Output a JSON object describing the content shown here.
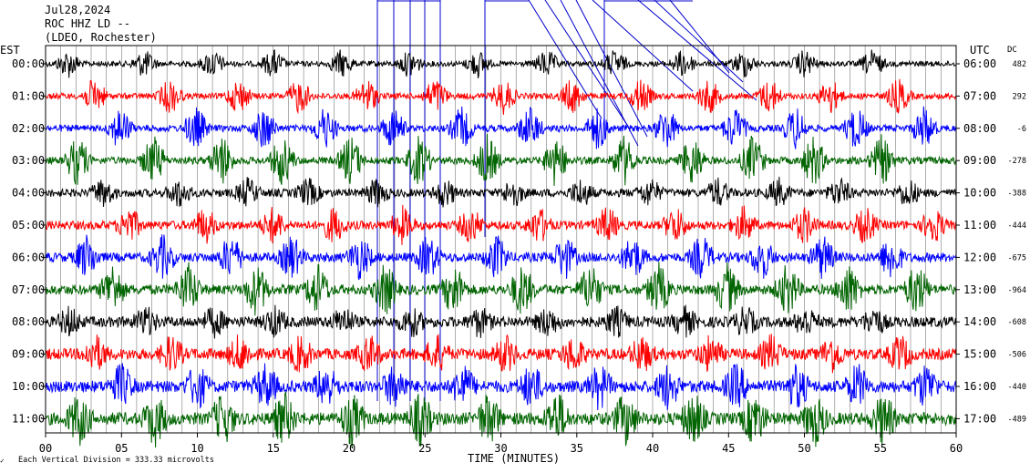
{
  "header": {
    "date": "Jul28,2024",
    "station": "ROC HHZ LD --",
    "network": "(LDEO, Rochester)"
  },
  "chart_data": {
    "type": "line",
    "title": "",
    "xlabel": "TIME (MINUTES)",
    "left_axis_label": "EST",
    "right_axis_label": "UTC",
    "dc_label": "DC",
    "xlim": [
      0,
      60
    ],
    "x_ticks": [
      "00",
      "05",
      "10",
      "15",
      "20",
      "25",
      "30",
      "35",
      "40",
      "45",
      "50",
      "55",
      "60"
    ],
    "scale_note": "Each Vertical Division =  333.33 microvolts",
    "grid": true,
    "rows": [
      {
        "est": "00:00",
        "utc": "06:00",
        "dc": "482",
        "color": "#000000"
      },
      {
        "est": "01:00",
        "utc": "07:00",
        "dc": "292",
        "color": "#ff0000"
      },
      {
        "est": "02:00",
        "utc": "08:00",
        "dc": "-6",
        "color": "#0000ff"
      },
      {
        "est": "03:00",
        "utc": "09:00",
        "dc": "-278",
        "color": "#006400"
      },
      {
        "est": "04:00",
        "utc": "10:00",
        "dc": "-388",
        "color": "#000000"
      },
      {
        "est": "05:00",
        "utc": "11:00",
        "dc": "-444",
        "color": "#ff0000"
      },
      {
        "est": "06:00",
        "utc": "12:00",
        "dc": "-675",
        "color": "#0000ff"
      },
      {
        "est": "07:00",
        "utc": "13:00",
        "dc": "-964",
        "color": "#006400"
      },
      {
        "est": "08:00",
        "utc": "14:00",
        "dc": "-608",
        "color": "#000000"
      },
      {
        "est": "09:00",
        "utc": "15:00",
        "dc": "-506",
        "color": "#ff0000"
      },
      {
        "est": "10:00",
        "utc": "16:00",
        "dc": "-440",
        "color": "#0000ff"
      },
      {
        "est": "11:00",
        "utc": "17:00",
        "dc": "-489",
        "color": "#006400"
      }
    ],
    "marker_color": "#0000cc"
  }
}
